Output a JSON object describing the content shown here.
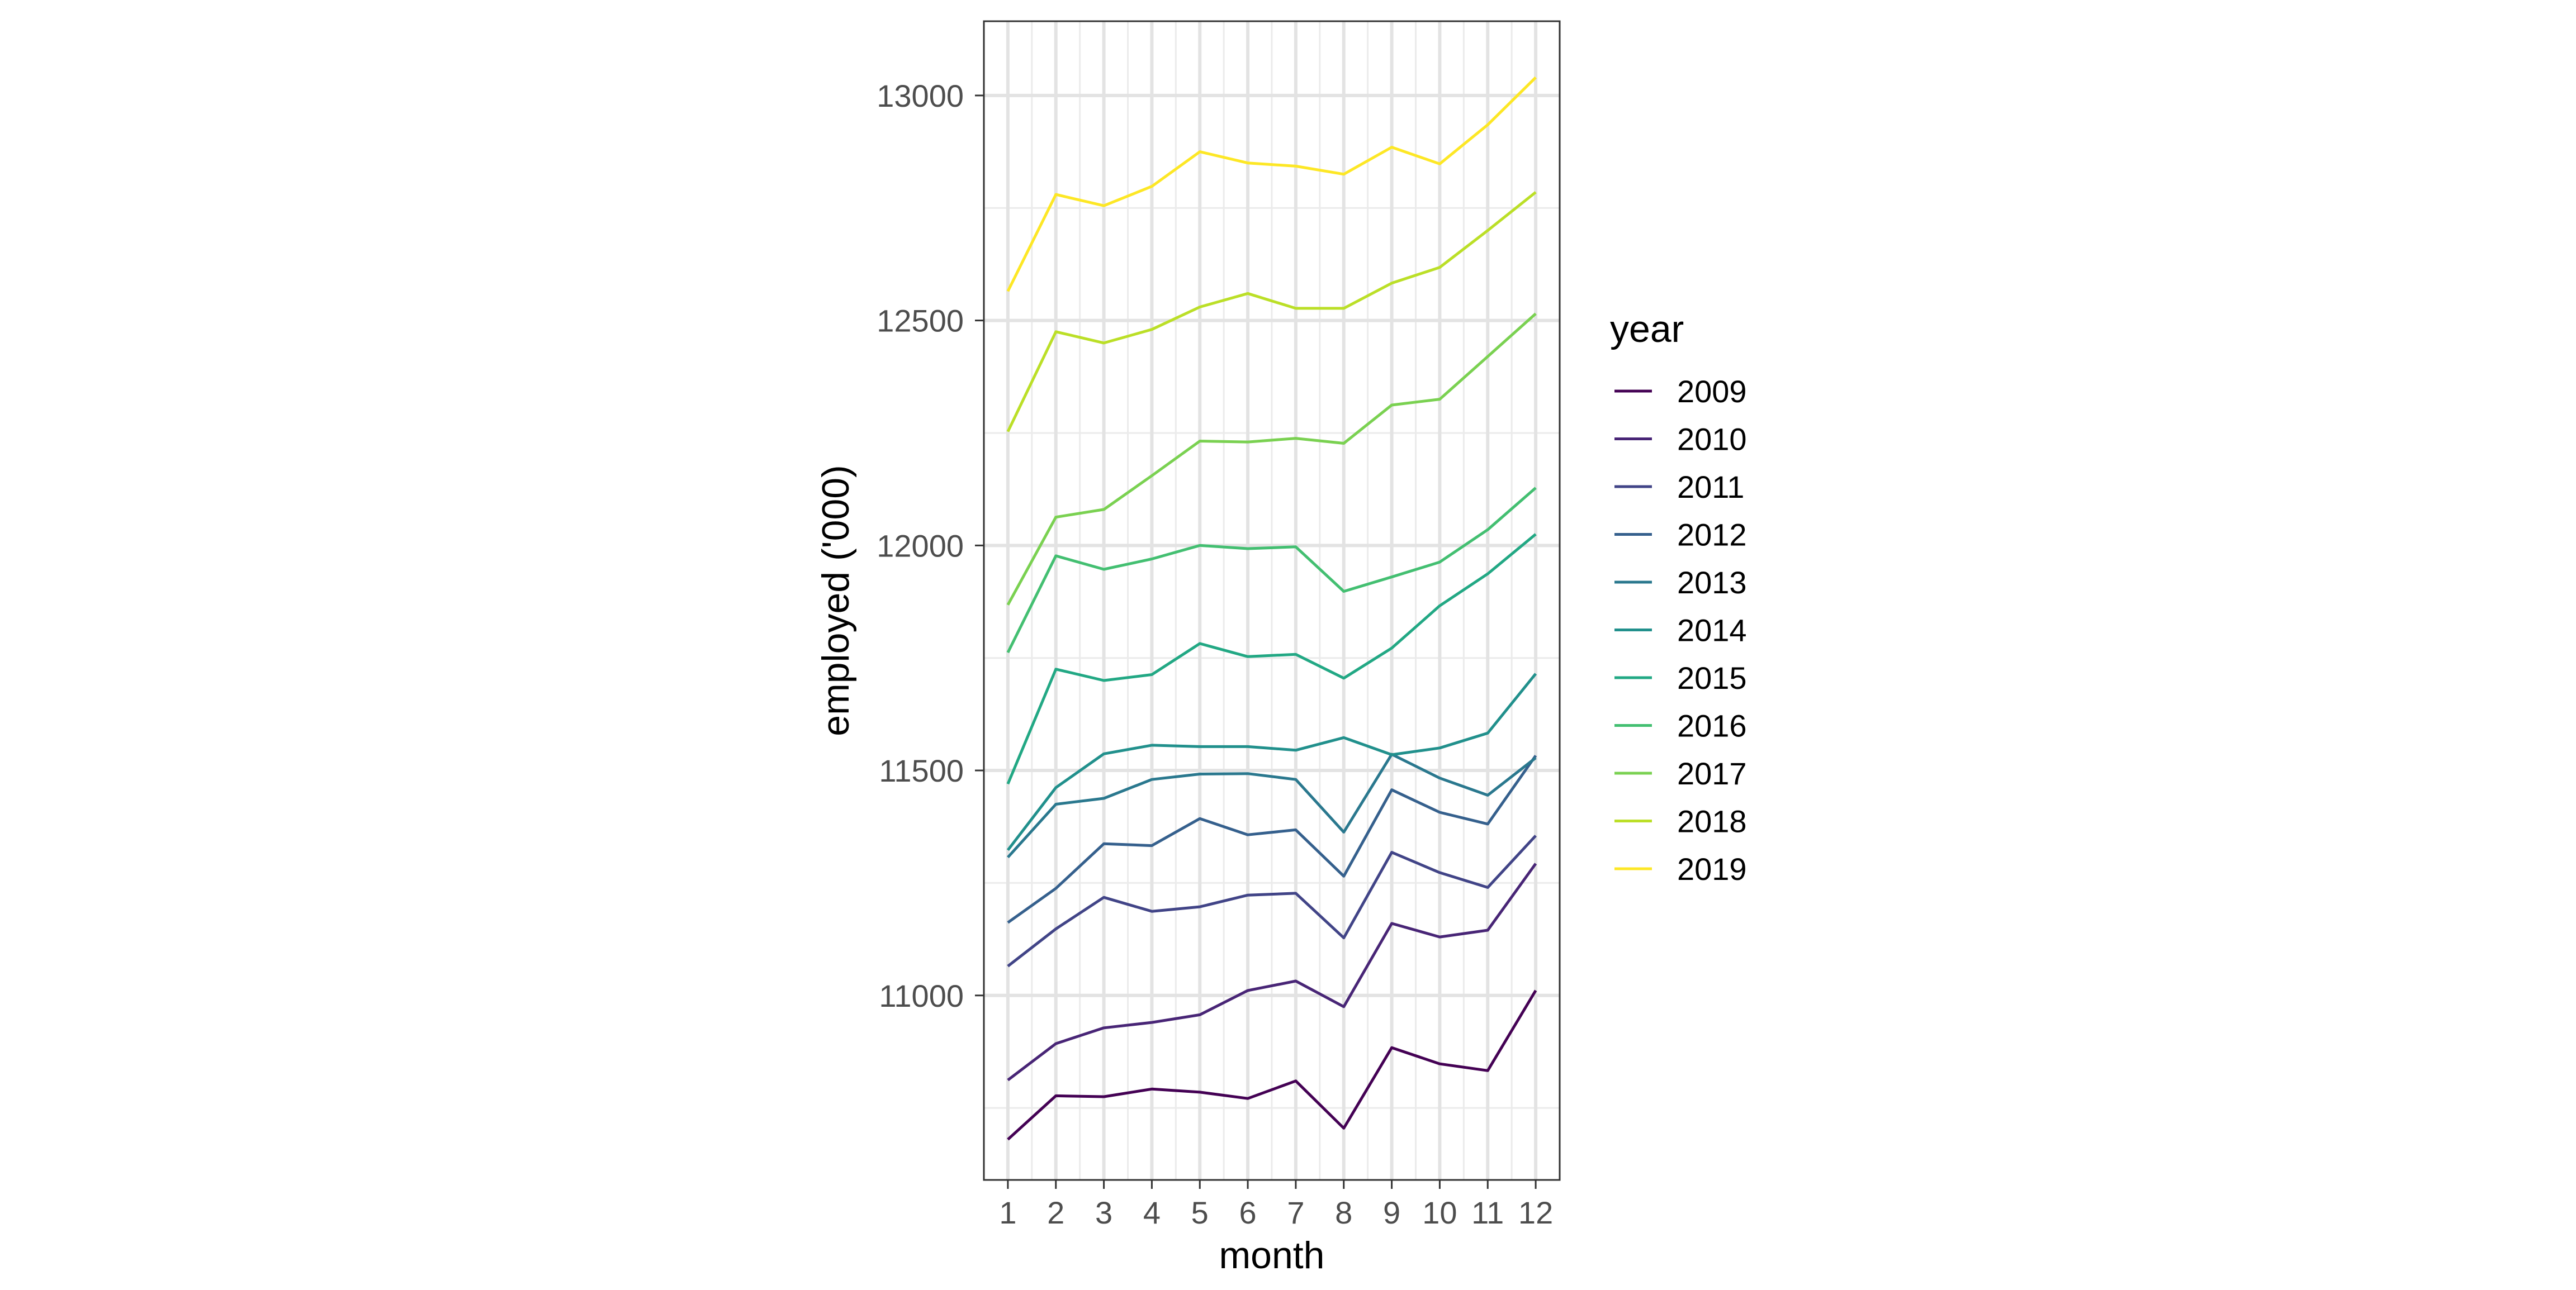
{
  "chart_data": {
    "type": "line",
    "xlabel": "month",
    "ylabel": "employed ('000)",
    "x": [
      1,
      2,
      3,
      4,
      5,
      6,
      7,
      8,
      9,
      10,
      11,
      12
    ],
    "xlim": [
      0.5,
      12.5
    ],
    "ylim": [
      10590,
      13165
    ],
    "y_ticks": [
      11000,
      11500,
      12000,
      12500,
      13000
    ],
    "grid": true,
    "legend": {
      "title": "year",
      "position": "right"
    },
    "series": [
      {
        "name": "2009",
        "color": "#440154",
        "values": [
          10680,
          10777,
          10775,
          10792,
          10785,
          10771,
          10810,
          10705,
          10884,
          10848,
          10833,
          11011
        ]
      },
      {
        "name": "2010",
        "color": "#482576",
        "values": [
          10812,
          10893,
          10928,
          10940,
          10957,
          11011,
          11032,
          10975,
          11160,
          11130,
          11145,
          11293
        ]
      },
      {
        "name": "2011",
        "color": "#414487",
        "values": [
          11065,
          11148,
          11218,
          11187,
          11197,
          11223,
          11227,
          11128,
          11318,
          11273,
          11240,
          11355
        ]
      },
      {
        "name": "2012",
        "color": "#35608D",
        "values": [
          11162,
          11238,
          11337,
          11333,
          11393,
          11357,
          11368,
          11265,
          11457,
          11407,
          11381,
          11533
        ]
      },
      {
        "name": "2013",
        "color": "#2A788E",
        "values": [
          11307,
          11425,
          11438,
          11480,
          11492,
          11493,
          11480,
          11363,
          11536,
          11483,
          11445,
          11528
        ]
      },
      {
        "name": "2014",
        "color": "#21908C",
        "values": [
          11323,
          11462,
          11537,
          11556,
          11553,
          11553,
          11545,
          11573,
          11535,
          11550,
          11583,
          11715
        ]
      },
      {
        "name": "2015",
        "color": "#22A884",
        "values": [
          11470,
          11725,
          11700,
          11713,
          11782,
          11753,
          11758,
          11705,
          11772,
          11866,
          11937,
          12025
        ]
      },
      {
        "name": "2016",
        "color": "#43BF71",
        "values": [
          11762,
          11977,
          11947,
          11970,
          12000,
          11993,
          11997,
          11898,
          11930,
          11963,
          12035,
          12128
        ]
      },
      {
        "name": "2017",
        "color": "#7AD151",
        "values": [
          11868,
          12063,
          12080,
          12155,
          12232,
          12230,
          12238,
          12227,
          12312,
          12325,
          12420,
          12515
        ]
      },
      {
        "name": "2018",
        "color": "#BBDF27",
        "values": [
          12253,
          12475,
          12450,
          12480,
          12530,
          12560,
          12527,
          12527,
          12583,
          12618,
          12700,
          12785
        ]
      },
      {
        "name": "2019",
        "color": "#FDE725",
        "values": [
          12565,
          12780,
          12755,
          12798,
          12875,
          12850,
          12843,
          12825,
          12885,
          12848,
          12935,
          13040
        ]
      }
    ]
  }
}
